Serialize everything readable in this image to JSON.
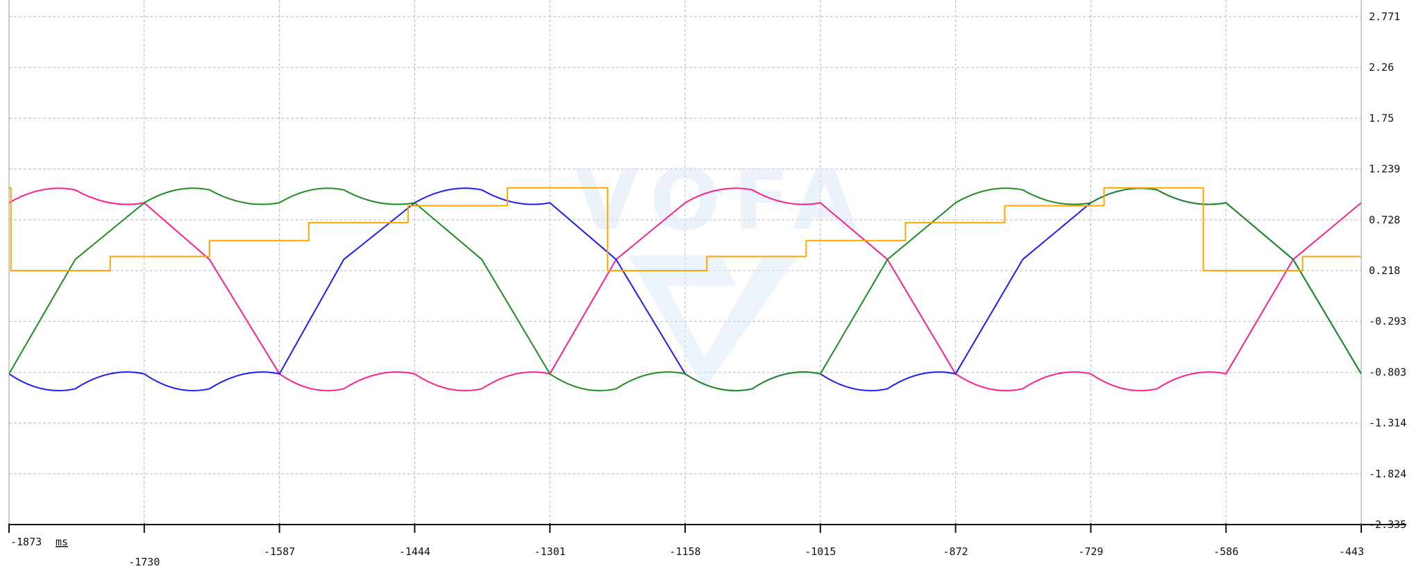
{
  "watermark_text": "VOFA",
  "chart_data": {
    "type": "line",
    "title": "",
    "xlabel": "",
    "ylabel": "",
    "x_unit": "ms",
    "xlim": [
      -1873,
      -443
    ],
    "ylim": [
      -2.335,
      2.771
    ],
    "grid": true,
    "legend": "none",
    "x_ticks": [
      "-1873",
      "-1730",
      "-1587",
      "-1444",
      "-1301",
      "-1158",
      "-1015",
      "-872",
      "-729",
      "-586",
      "-443"
    ],
    "y_ticks": [
      "2.771",
      "2.26",
      "1.75",
      "1.239",
      "0.728",
      "0.218",
      "-0.293",
      "-0.803",
      "-1.314",
      "-1.824",
      "-2.335"
    ],
    "series": [
      {
        "color": "#ff1e8c",
        "x": [
          -1873,
          -1803,
          -1730,
          -1661,
          -1587,
          -1519,
          -1444,
          -1373,
          -1301,
          -1231,
          -1158,
          -1087,
          -1015,
          -944,
          -872,
          -801,
          -729,
          -659,
          -586,
          -515,
          -443
        ],
        "values": [
          0.9,
          1.03,
          0.9,
          0.33,
          -0.82,
          -0.97,
          -0.82,
          -0.97,
          -0.82,
          0.33,
          0.9,
          1.03,
          0.9,
          0.33,
          -0.82,
          -0.97,
          -0.82,
          -0.97,
          -0.82,
          0.33,
          0.9
        ]
      },
      {
        "color": "#1a1aff",
        "x": [
          -1873,
          -1803,
          -1730,
          -1661,
          -1587,
          -1519,
          -1444,
          -1373,
          -1301,
          -1231,
          -1158,
          -1087,
          -1015,
          -944,
          -872,
          -801,
          -729,
          -659,
          -586,
          -515,
          -443
        ],
        "values": [
          -0.82,
          -0.97,
          -0.82,
          -0.97,
          -0.82,
          0.33,
          0.9,
          1.03,
          0.9,
          0.33,
          -0.82,
          -0.97,
          -0.82,
          -0.97,
          -0.82,
          0.33,
          0.9,
          1.03,
          0.9,
          0.33,
          -0.82
        ]
      },
      {
        "color": "#1f8c1f",
        "x": [
          -1873,
          -1803,
          -1730,
          -1661,
          -1587,
          -1519,
          -1444,
          -1373,
          -1301,
          -1231,
          -1158,
          -1087,
          -1015,
          -944,
          -872,
          -801,
          -729,
          -659,
          -586,
          -515,
          -443
        ],
        "values": [
          -0.82,
          0.33,
          0.9,
          1.03,
          0.9,
          1.03,
          0.9,
          0.33,
          -0.82,
          -0.97,
          -0.82,
          -0.97,
          -0.82,
          0.33,
          0.9,
          1.03,
          0.9,
          1.03,
          0.9,
          0.33,
          -0.82
        ]
      },
      {
        "color": "#ffa500",
        "step": true,
        "x": [
          -1873,
          -1871,
          -1766,
          -1661,
          -1556,
          -1451,
          -1346,
          -1240,
          -1135,
          -1030,
          -925,
          -820,
          -715,
          -610,
          -505,
          -443
        ],
        "values": [
          1.05,
          0.218,
          0.36,
          0.52,
          0.7,
          0.87,
          1.05,
          0.218,
          0.36,
          0.52,
          0.7,
          0.87,
          1.05,
          0.218,
          0.36,
          0.36
        ]
      }
    ]
  }
}
